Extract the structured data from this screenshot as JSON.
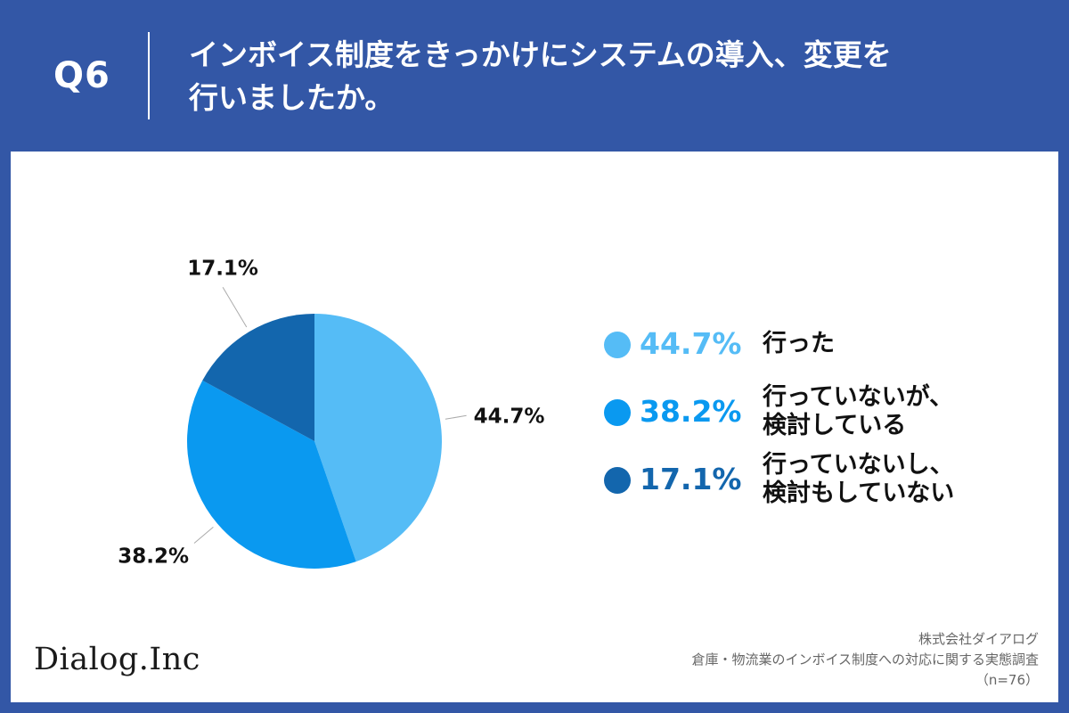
{
  "header": {
    "question_number": "Q6",
    "title_line1": "インボイス制度をきっかけにシステムの導入、変更を",
    "title_line2": "行いましたか。"
  },
  "chart_data": {
    "type": "pie",
    "slices": [
      {
        "label_line1": "行った",
        "label_line2": "",
        "value": 44.7,
        "value_label": "44.7%",
        "color": "#55bcf6"
      },
      {
        "label_line1": "行っていないが、",
        "label_line2": "検討している",
        "value": 38.2,
        "value_label": "38.2%",
        "color": "#0a99f0"
      },
      {
        "label_line1": "行っていないし、",
        "label_line2": "検討もしていない",
        "value": 17.1,
        "value_label": "17.1%",
        "color": "#1366ad"
      }
    ],
    "legend_placement": "right"
  },
  "footer": {
    "logo_text": "Dialog.Inc",
    "company": "株式会社ダイアログ",
    "survey": "倉庫・物流業のインボイス制度への対応に関する実態調査",
    "sample": "（n=76）"
  }
}
